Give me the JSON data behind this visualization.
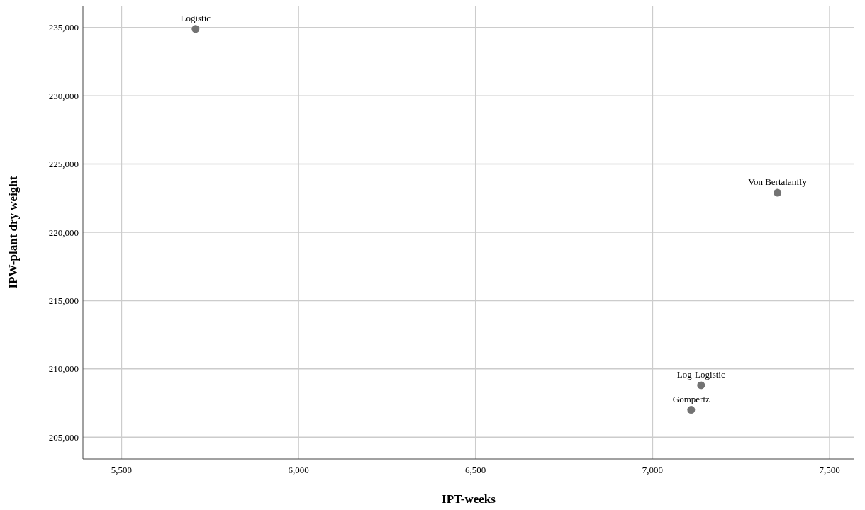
{
  "chart_data": {
    "type": "scatter",
    "xlabel": "IPT-weeks",
    "ylabel": "IPW-plant dry weight",
    "x": [
      5709,
      7353,
      7137,
      7109
    ],
    "values": [
      234900,
      222900,
      208800,
      207000
    ],
    "color": "#737373",
    "marker": "circle",
    "grid": true,
    "xlim": [
      5391,
      7570
    ],
    "ylim": [
      203400,
      236600
    ],
    "xticks": [
      {
        "value": 5500,
        "label": "5,500"
      },
      {
        "value": 6000,
        "label": "6,000"
      },
      {
        "value": 6500,
        "label": "6,500"
      },
      {
        "value": 7000,
        "label": "7,000"
      },
      {
        "value": 7500,
        "label": "7,500"
      }
    ],
    "yticks": [
      {
        "value": 205000,
        "label": "205,000"
      },
      {
        "value": 210000,
        "label": "210,000"
      },
      {
        "value": 215000,
        "label": "215,000"
      },
      {
        "value": 220000,
        "label": "220,000"
      },
      {
        "value": 225000,
        "label": "225,000"
      },
      {
        "value": 230000,
        "label": "230,000"
      },
      {
        "value": 235000,
        "label": "235,000"
      }
    ],
    "annotations": [
      {
        "text": "Logistic",
        "x": 5709,
        "y": 234900
      },
      {
        "text": "Von Bertalanffy",
        "x": 7353,
        "y": 222900
      },
      {
        "text": "Log-Logistic",
        "x": 7137,
        "y": 208800
      },
      {
        "text": "Gompertz",
        "x": 7109,
        "y": 207000
      }
    ]
  }
}
